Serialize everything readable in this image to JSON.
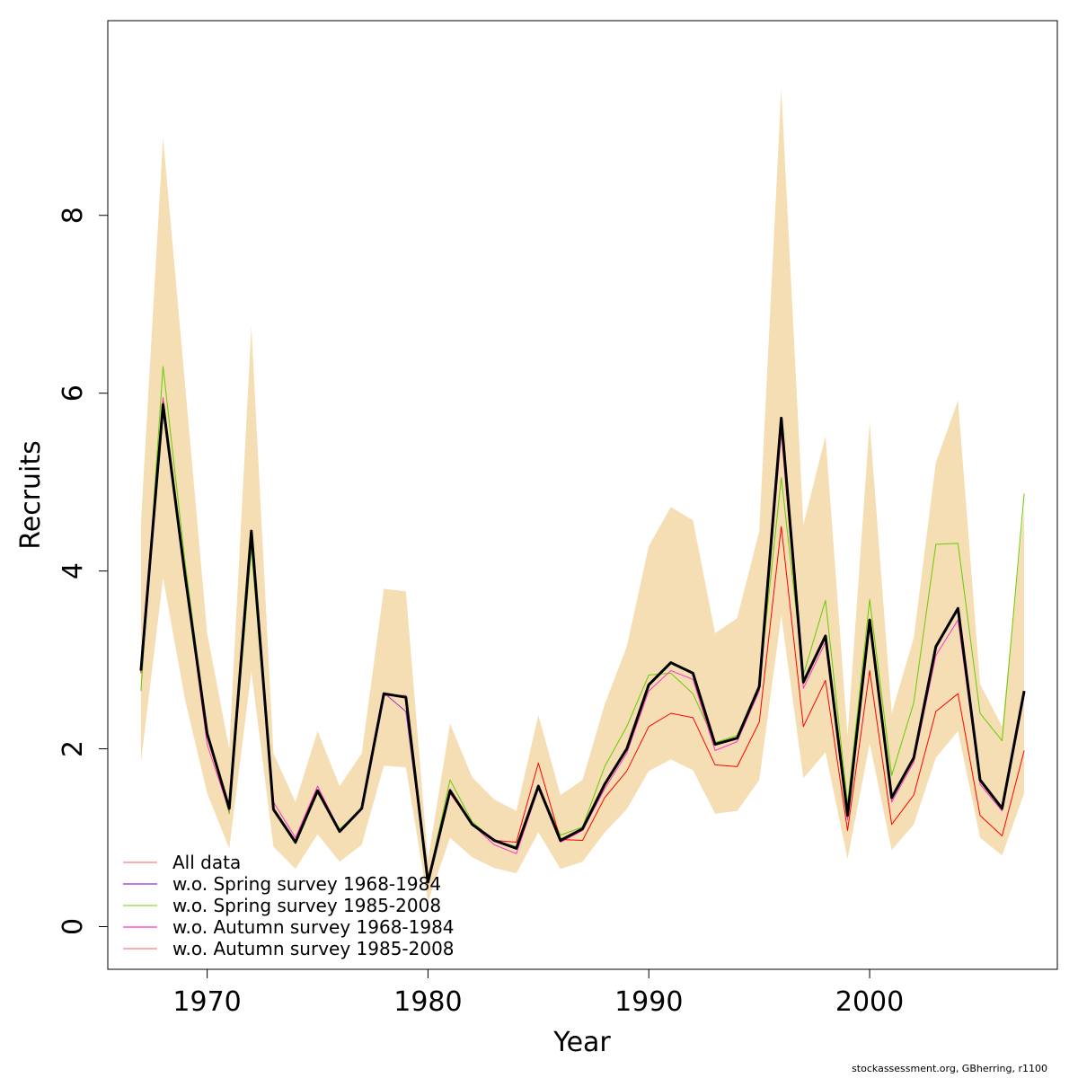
{
  "chart_data": {
    "type": "line",
    "title": "",
    "xlabel": "Year",
    "ylabel": "Recruits",
    "xlim": [
      1965.5,
      2008.5
    ],
    "ylim": [
      -0.48,
      10.19
    ],
    "xticks": [
      1970,
      1980,
      1990,
      2000
    ],
    "yticks": [
      0,
      2,
      4,
      6,
      8
    ],
    "grid": false,
    "legend_position": "bottom-left",
    "x": [
      1967,
      1968,
      1969,
      1970,
      1971,
      1972,
      1973,
      1974,
      1975,
      1976,
      1977,
      1978,
      1979,
      1980,
      1981,
      1982,
      1983,
      1984,
      1985,
      1986,
      1987,
      1988,
      1989,
      1990,
      1991,
      1992,
      1993,
      1994,
      1995,
      1996,
      1997,
      1998,
      1999,
      2000,
      2001,
      2002,
      2003,
      2004,
      2005,
      2006,
      2007
    ],
    "band": {
      "color": "#f5deb3",
      "upper": [
        4.55,
        8.88,
        6.1,
        3.3,
        2.0,
        6.75,
        1.95,
        1.4,
        2.2,
        1.58,
        1.95,
        3.8,
        3.77,
        0.75,
        2.28,
        1.68,
        1.43,
        1.3,
        2.38,
        1.48,
        1.65,
        2.5,
        3.15,
        4.28,
        4.72,
        4.57,
        3.3,
        3.47,
        4.45,
        9.42,
        4.52,
        5.52,
        2.15,
        5.67,
        2.4,
        3.25,
        5.22,
        5.92,
        2.73,
        2.25,
        4.7
      ],
      "lower": [
        1.85,
        3.92,
        2.55,
        1.5,
        0.88,
        2.87,
        0.9,
        0.65,
        1.04,
        0.73,
        0.92,
        1.81,
        1.79,
        0.28,
        1.0,
        0.78,
        0.66,
        0.6,
        1.06,
        0.65,
        0.73,
        1.06,
        1.32,
        1.75,
        1.88,
        1.76,
        1.27,
        1.3,
        1.65,
        3.5,
        1.67,
        1.96,
        0.76,
        2.06,
        0.86,
        1.15,
        1.9,
        2.2,
        1.0,
        0.8,
        1.5
      ]
    },
    "series": [
      {
        "name": "All data",
        "color": "#000000",
        "width": 3,
        "legend_color": "#f08080",
        "values": [
          2.88,
          5.87,
          3.95,
          2.17,
          1.33,
          4.45,
          1.32,
          0.95,
          1.53,
          1.07,
          1.33,
          2.62,
          2.58,
          0.5,
          1.53,
          1.15,
          0.97,
          0.88,
          1.58,
          0.97,
          1.1,
          1.6,
          2.0,
          2.72,
          2.97,
          2.85,
          2.05,
          2.12,
          2.7,
          5.72,
          2.75,
          3.27,
          1.25,
          3.45,
          1.45,
          1.9,
          3.15,
          3.58,
          1.65,
          1.33,
          2.65
        ]
      },
      {
        "name": "w.o. Spring survey 1968-1984",
        "color": "#9b30d0",
        "width": 1,
        "legend_color": "#9b30d0",
        "values": [
          2.85,
          5.85,
          3.9,
          2.15,
          1.32,
          4.43,
          1.3,
          0.94,
          1.52,
          1.06,
          1.32,
          2.63,
          2.42,
          0.5,
          1.52,
          1.14,
          0.96,
          0.87,
          1.57,
          0.96,
          1.1,
          1.6,
          2.0,
          2.72,
          2.96,
          2.84,
          2.04,
          2.12,
          2.7,
          5.7,
          2.73,
          3.25,
          1.23,
          3.43,
          1.43,
          1.89,
          3.13,
          3.57,
          1.63,
          1.32,
          2.63
        ]
      },
      {
        "name": "w.o. Spring survey 1985-2008",
        "color": "#66cc00",
        "width": 1,
        "legend_color": "#80dd40",
        "values": [
          2.65,
          6.3,
          4.1,
          2.2,
          1.27,
          4.25,
          1.3,
          0.93,
          1.5,
          1.1,
          1.32,
          2.6,
          2.6,
          0.52,
          1.65,
          1.18,
          0.97,
          0.9,
          1.58,
          1.03,
          1.12,
          1.8,
          2.25,
          2.83,
          2.85,
          2.62,
          2.07,
          2.15,
          2.72,
          5.05,
          2.83,
          3.67,
          1.38,
          3.68,
          1.7,
          2.52,
          4.3,
          4.31,
          2.4,
          2.09,
          4.87
        ]
      },
      {
        "name": "w.o. Autumn survey 1968-1984",
        "color": "#ff33cc",
        "width": 1,
        "legend_color": "#ff33cc",
        "values": [
          2.9,
          5.95,
          3.92,
          2.05,
          1.3,
          4.38,
          1.4,
          1.0,
          1.58,
          1.08,
          1.33,
          2.6,
          2.6,
          0.5,
          1.55,
          1.15,
          0.92,
          0.82,
          1.55,
          0.95,
          1.08,
          1.55,
          1.95,
          2.65,
          2.88,
          2.78,
          1.98,
          2.08,
          2.65,
          5.55,
          2.68,
          3.2,
          1.2,
          3.38,
          1.4,
          1.85,
          3.05,
          3.45,
          1.6,
          1.3,
          2.6
        ]
      },
      {
        "name": "w.o. Autumn survey 1985-2008",
        "color": "#ff0000",
        "width": 1,
        "legend_color": "#f08080",
        "values": [
          2.86,
          5.9,
          3.95,
          2.15,
          1.33,
          4.45,
          1.32,
          0.95,
          1.53,
          1.07,
          1.33,
          2.62,
          2.58,
          0.5,
          1.5,
          1.15,
          0.97,
          0.95,
          1.84,
          0.98,
          0.97,
          1.45,
          1.75,
          2.25,
          2.4,
          2.35,
          1.82,
          1.8,
          2.3,
          4.5,
          2.25,
          2.77,
          1.08,
          2.88,
          1.15,
          1.48,
          2.42,
          2.62,
          1.25,
          1.02,
          1.98
        ]
      }
    ]
  },
  "footer": "stockassessment.org, GBherring, r1100"
}
